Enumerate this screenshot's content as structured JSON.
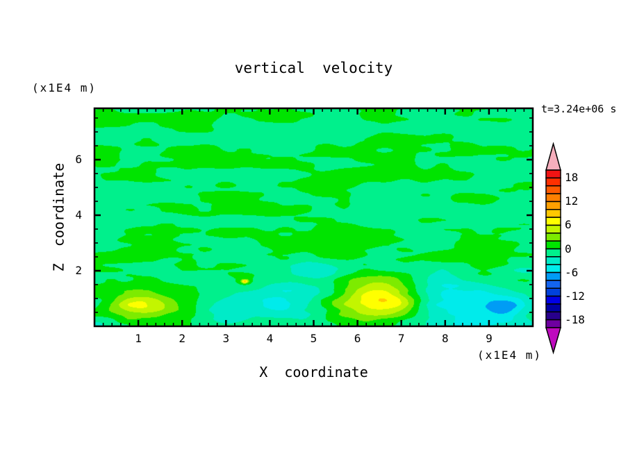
{
  "chart_data": {
    "type": "filled_contour",
    "title": "vertical  velocity",
    "time_annotation": "t=3.24e+06 s",
    "x_axis": {
      "label": "X  coordinate",
      "unit": "(x1E4 m)",
      "range": [
        0,
        10
      ],
      "tick_labels": [
        1,
        2,
        3,
        4,
        5,
        6,
        7,
        8,
        9
      ],
      "minor_step": 0.2
    },
    "y_axis": {
      "label": "Z  coordinate",
      "unit": "(x1E4 m)",
      "range": [
        0,
        7.85
      ],
      "tick_labels": [
        2,
        4,
        6
      ],
      "minor_step": 0.5
    },
    "levels": {
      "min": -20,
      "max": 20,
      "step": 2
    },
    "palette": {
      "max": 20,
      "step": 2,
      "band_colors": [
        "#F01414",
        "#FF3000",
        "#FF5A00",
        "#FF7F00",
        "#FFA000",
        "#FFC800",
        "#FFFF00",
        "#C3F500",
        "#7DEB00",
        "#00E400",
        "#00F08C",
        "#00EBC8",
        "#00EBEB",
        "#009CF5",
        "#1464F0",
        "#0041DC",
        "#0000E6",
        "#0000A5",
        "#28008C",
        "#6E00A0"
      ],
      "over_color": "#F6AEBC",
      "under_color": "#BE0ABE"
    },
    "colorbar_labels": [
      18,
      12,
      6,
      0,
      -6,
      -12,
      -18
    ],
    "field_summary": "Mottled near-zero field (bands -2..0 and 0..2) aloft; near the surface: updraft plumes peaking ~+7 at x=1.1 and x=6.5, broad downdraft layer ~-3 over x=3..10 with a local minimum ~-7 at x=9.4, tiny +9 speck at x=3.4,y=1.6.",
    "features": [
      {
        "x": 1.05,
        "y": 0.75,
        "amp": 3.6,
        "sx": 0.62,
        "sy": 0.52
      },
      {
        "x": 0.82,
        "y": 0.78,
        "amp": 2.6,
        "sx": 0.28,
        "sy": 0.25
      },
      {
        "x": 1.33,
        "y": 0.7,
        "amp": 2.4,
        "sx": 0.3,
        "sy": 0.22
      },
      {
        "x": 6.55,
        "y": 1.0,
        "amp": 5.2,
        "sx": 0.72,
        "sy": 0.62
      },
      {
        "x": 6.35,
        "y": 0.95,
        "amp": 2.9,
        "sx": 0.42,
        "sy": 0.33
      },
      {
        "x": 6.95,
        "y": 0.85,
        "amp": 3.0,
        "sx": 0.35,
        "sy": 0.25
      },
      {
        "x": 5.55,
        "y": 0.6,
        "amp": 1.8,
        "sx": 0.45,
        "sy": 0.5
      },
      {
        "x": 3.45,
        "y": 1.6,
        "amp": 1.6,
        "sx": 0.3,
        "sy": 0.18
      },
      {
        "x": 3.43,
        "y": 1.62,
        "amp": 9.0,
        "sx": 0.055,
        "sy": 0.05
      },
      {
        "x": 2.95,
        "y": 0.55,
        "amp": -2.9,
        "sx": 0.45,
        "sy": 0.5
      },
      {
        "x": 4.4,
        "y": 0.8,
        "amp": -3.4,
        "sx": 0.75,
        "sy": 0.55
      },
      {
        "x": 4.0,
        "y": 0.75,
        "amp": -1.6,
        "sx": 0.25,
        "sy": 0.2
      },
      {
        "x": 5.1,
        "y": 2.0,
        "amp": -2.6,
        "sx": 0.4,
        "sy": 0.3
      },
      {
        "x": 8.05,
        "y": 1.0,
        "amp": -3.6,
        "sx": 0.75,
        "sy": 0.6
      },
      {
        "x": 8.9,
        "y": 0.5,
        "amp": -3.0,
        "sx": 0.8,
        "sy": 0.5
      },
      {
        "x": 9.42,
        "y": 0.7,
        "amp": -4.2,
        "sx": 0.34,
        "sy": 0.3
      },
      {
        "x": 7.5,
        "y": 0.45,
        "amp": -1.2,
        "sx": 2.2,
        "sy": 0.8
      },
      {
        "x": 9.85,
        "y": 1.95,
        "amp": -2.0,
        "sx": 0.3,
        "sy": 0.18
      },
      {
        "x": 0.1,
        "y": 0.1,
        "amp": -1.8,
        "sx": 0.3,
        "sy": 0.3
      }
    ],
    "noise": {
      "amplitude": 1.75,
      "bias": -0.15,
      "w1": 0.68,
      "w2": 0.32,
      "sx1": 1.1,
      "sy1": 0.42,
      "sx2": 0.45,
      "sy2": 0.18
    }
  }
}
